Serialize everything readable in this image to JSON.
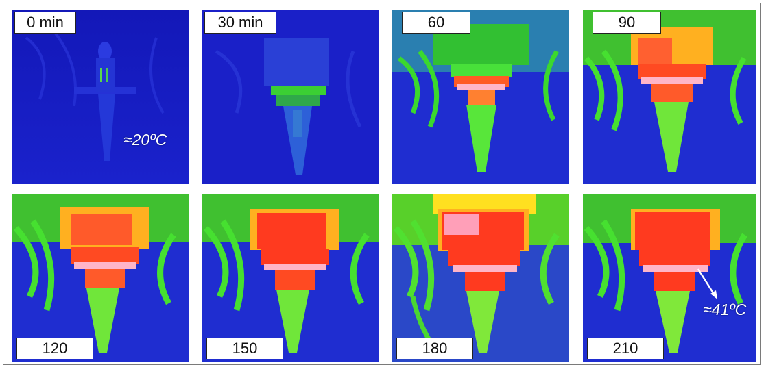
{
  "figure": {
    "frames": [
      {
        "label": "0 min",
        "stage": 0
      },
      {
        "label": "30 min",
        "stage": 1
      },
      {
        "label": "60",
        "stage": 2
      },
      {
        "label": "90",
        "stage": 3
      },
      {
        "label": "120",
        "stage": 4
      },
      {
        "label": "150",
        "stage": 5
      },
      {
        "label": "180",
        "stage": 6
      },
      {
        "label": "210",
        "stage": 7
      }
    ],
    "annotations": {
      "start_temperature": "≈20ºC",
      "end_temperature": "≈41ºC"
    },
    "colors": {
      "cold": "#1a1fd0",
      "cool": "#2d52d8",
      "warm": "#3fe22a",
      "hot": "#ffd11a",
      "hotter": "#ff3b1f",
      "hottest": "#ffb0c8"
    }
  }
}
